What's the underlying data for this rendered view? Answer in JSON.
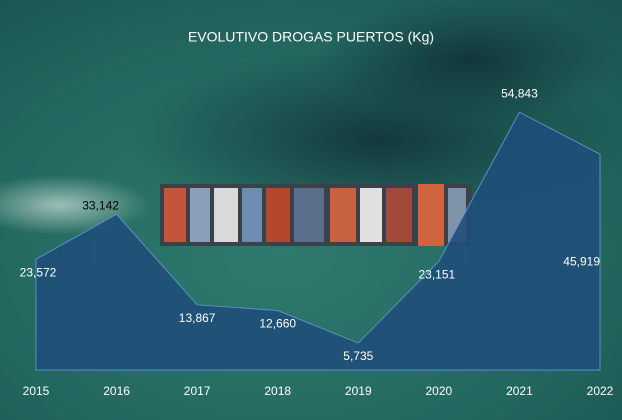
{
  "chart_data": {
    "type": "area",
    "title": "EVOLUTIVO DROGAS PUERTOS (Kg)",
    "categories": [
      "2015",
      "2016",
      "2017",
      "2018",
      "2019",
      "2020",
      "2021",
      "2022"
    ],
    "values": [
      23572,
      33142,
      13867,
      12660,
      5735,
      23151,
      54843,
      45919
    ],
    "value_labels": [
      "23,572",
      "33,142",
      "13,867",
      "12,660",
      "5,735",
      "23,151",
      "54,843",
      "45,919"
    ],
    "color": "#1f4e79",
    "ylim": [
      0,
      60000
    ]
  }
}
